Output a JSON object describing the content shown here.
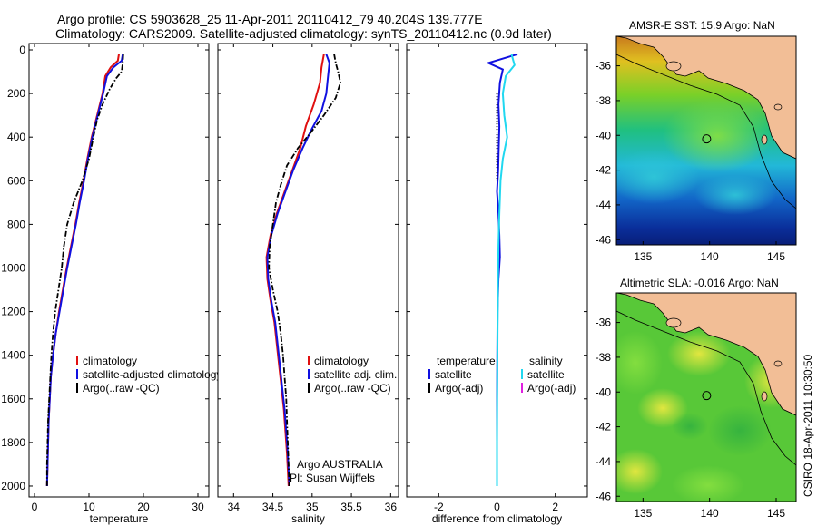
{
  "title": {
    "line1": "Argo profile: CS 5903628_25 11-Apr-2011 20110412_79 40.204S 139.777E",
    "line2": "Climatology: CARS2009. Satellite-adjusted climatology: synTS_20110412.nc (0.9d later)"
  },
  "side_label": "CSIRO 18-Apr-2011 10:30:50",
  "colors": {
    "climatology": "#e01010",
    "satellite": "#1010e0",
    "argo": "#000000",
    "cyan": "#20d8f0",
    "magenta": "#e020e0",
    "land": "#f2be96"
  },
  "chart_data": [
    {
      "type": "line",
      "xlabel": "temperature",
      "xlim": [
        -1,
        32
      ],
      "ylim": [
        0,
        2050
      ],
      "y_reversed": true,
      "xticks": [
        "0",
        "10",
        "20",
        "30"
      ],
      "yticks": [
        "0",
        "200",
        "400",
        "600",
        "800",
        "1000",
        "1200",
        "1400",
        "1600",
        "1800",
        "2000"
      ],
      "series": [
        {
          "name": "climatology",
          "style": "solid",
          "color": "#e01010",
          "points": [
            [
              15.5,
              20
            ],
            [
              15.3,
              50
            ],
            [
              14.0,
              80
            ],
            [
              13.0,
              120
            ],
            [
              12.5,
              200
            ],
            [
              11.5,
              300
            ],
            [
              10.5,
              400
            ],
            [
              9.7,
              500
            ],
            [
              9.0,
              600
            ],
            [
              8.2,
              700
            ],
            [
              7.5,
              800
            ],
            [
              6.7,
              900
            ],
            [
              5.9,
              1000
            ],
            [
              5.2,
              1100
            ],
            [
              4.5,
              1200
            ],
            [
              3.9,
              1300
            ],
            [
              3.4,
              1400
            ],
            [
              3.0,
              1500
            ],
            [
              2.8,
              1600
            ],
            [
              2.6,
              1700
            ],
            [
              2.5,
              1800
            ],
            [
              2.4,
              1900
            ],
            [
              2.3,
              2000
            ]
          ]
        },
        {
          "name": "satellite-adjusted climatology",
          "style": "solid",
          "color": "#1010e0",
          "points": [
            [
              16.2,
              20
            ],
            [
              16.0,
              50
            ],
            [
              14.5,
              80
            ],
            [
              13.3,
              120
            ],
            [
              12.6,
              200
            ],
            [
              11.6,
              300
            ],
            [
              10.6,
              400
            ],
            [
              9.8,
              500
            ],
            [
              9.1,
              600
            ],
            [
              8.3,
              700
            ],
            [
              7.6,
              800
            ],
            [
              6.8,
              900
            ],
            [
              6.0,
              1000
            ],
            [
              5.3,
              1100
            ],
            [
              4.6,
              1200
            ],
            [
              3.9,
              1300
            ],
            [
              3.4,
              1400
            ],
            [
              3.0,
              1500
            ],
            [
              2.8,
              1600
            ],
            [
              2.6,
              1700
            ],
            [
              2.5,
              1800
            ],
            [
              2.4,
              1900
            ],
            [
              2.3,
              2000
            ]
          ]
        },
        {
          "name": "Argo(..raw -QC)",
          "style": "dashdot",
          "color": "#000000",
          "points": [
            [
              16.3,
              20
            ],
            [
              16.2,
              60
            ],
            [
              16.0,
              100
            ],
            [
              15.0,
              130
            ],
            [
              13.8,
              180
            ],
            [
              12.5,
              250
            ],
            [
              11.5,
              320
            ],
            [
              10.8,
              400
            ],
            [
              10.0,
              500
            ],
            [
              8.8,
              600
            ],
            [
              7.2,
              700
            ],
            [
              6.0,
              800
            ],
            [
              5.4,
              900
            ],
            [
              5.0,
              1000
            ],
            [
              4.4,
              1100
            ],
            [
              3.8,
              1200
            ],
            [
              3.4,
              1300
            ],
            [
              3.1,
              1400
            ],
            [
              2.9,
              1500
            ],
            [
              2.7,
              1600
            ],
            [
              2.5,
              1700
            ],
            [
              2.4,
              1800
            ],
            [
              2.3,
              1900
            ],
            [
              2.3,
              2000
            ]
          ]
        }
      ],
      "legend": {
        "location": "center-right",
        "entries": [
          "climatology",
          "satellite-adjusted climatology",
          "Argo(..raw -QC)"
        ]
      }
    },
    {
      "type": "line",
      "xlabel": "salinity",
      "xlim": [
        33.8,
        36.1
      ],
      "ylim": [
        0,
        2050
      ],
      "y_reversed": true,
      "xticks": [
        "34",
        "34.5",
        "35",
        "35.5",
        "36"
      ],
      "series": [
        {
          "name": "climatology",
          "style": "solid",
          "color": "#e01010",
          "points": [
            [
              35.15,
              20
            ],
            [
              35.12,
              80
            ],
            [
              35.1,
              150
            ],
            [
              35.02,
              250
            ],
            [
              34.92,
              350
            ],
            [
              34.85,
              450
            ],
            [
              34.75,
              550
            ],
            [
              34.65,
              650
            ],
            [
              34.55,
              750
            ],
            [
              34.47,
              850
            ],
            [
              34.42,
              950
            ],
            [
              34.43,
              1050
            ],
            [
              34.47,
              1150
            ],
            [
              34.52,
              1250
            ],
            [
              34.55,
              1350
            ],
            [
              34.58,
              1450
            ],
            [
              34.61,
              1550
            ],
            [
              34.64,
              1650
            ],
            [
              34.66,
              1750
            ],
            [
              34.68,
              1850
            ],
            [
              34.7,
              2000
            ]
          ]
        },
        {
          "name": "satellite adj. clim.",
          "style": "solid",
          "color": "#1010e0",
          "points": [
            [
              35.18,
              20
            ],
            [
              35.22,
              60
            ],
            [
              35.2,
              130
            ],
            [
              35.18,
              200
            ],
            [
              35.12,
              280
            ],
            [
              35.0,
              360
            ],
            [
              34.88,
              450
            ],
            [
              34.76,
              550
            ],
            [
              34.66,
              650
            ],
            [
              34.56,
              750
            ],
            [
              34.48,
              850
            ],
            [
              34.43,
              950
            ],
            [
              34.44,
              1050
            ],
            [
              34.48,
              1150
            ],
            [
              34.53,
              1250
            ],
            [
              34.56,
              1350
            ],
            [
              34.59,
              1450
            ],
            [
              34.62,
              1550
            ],
            [
              34.65,
              1650
            ],
            [
              34.67,
              1750
            ],
            [
              34.69,
              1850
            ],
            [
              34.71,
              2000
            ]
          ]
        },
        {
          "name": "Argo(..raw -QC)",
          "style": "dashdot",
          "color": "#000000",
          "points": [
            [
              35.28,
              20
            ],
            [
              35.3,
              60
            ],
            [
              35.33,
              100
            ],
            [
              35.36,
              150
            ],
            [
              35.3,
              220
            ],
            [
              35.15,
              300
            ],
            [
              34.98,
              380
            ],
            [
              34.82,
              450
            ],
            [
              34.68,
              530
            ],
            [
              34.6,
              620
            ],
            [
              34.54,
              700
            ],
            [
              34.5,
              800
            ],
            [
              34.46,
              900
            ],
            [
              34.45,
              1000
            ],
            [
              34.5,
              1100
            ],
            [
              34.56,
              1200
            ],
            [
              34.6,
              1300
            ],
            [
              34.63,
              1400
            ],
            [
              34.65,
              1500
            ],
            [
              34.67,
              1600
            ],
            [
              34.68,
              1700
            ],
            [
              34.69,
              1800
            ],
            [
              34.7,
              1900
            ],
            [
              34.71,
              2000
            ]
          ]
        }
      ],
      "legend": {
        "location": "center-right",
        "entries": [
          "climatology",
          "satellite adj. clim.",
          "Argo(..raw -QC)"
        ]
      },
      "annotation": {
        "line1": "Argo AUSTRALIA",
        "line2": "PI: Susan Wijffels"
      }
    },
    {
      "type": "line",
      "xlabel": "difference from climatology",
      "xlim": [
        -3.1,
        3.1
      ],
      "ylim": [
        0,
        2050
      ],
      "y_reversed": true,
      "xticks": [
        "-2",
        "0",
        "2"
      ],
      "series": [
        {
          "name": "temperature satellite",
          "style": "solid",
          "color": "#1010e0",
          "points": [
            [
              0.7,
              20
            ],
            [
              -0.3,
              60
            ],
            [
              0.2,
              90
            ],
            [
              0.1,
              150
            ],
            [
              0.05,
              250
            ],
            [
              0.08,
              350
            ],
            [
              0.06,
              450
            ],
            [
              0.04,
              550
            ],
            [
              0.0,
              650
            ],
            [
              0.05,
              750
            ],
            [
              0.08,
              850
            ],
            [
              0.1,
              950
            ],
            [
              0.05,
              1050
            ],
            [
              0.02,
              1200
            ],
            [
              0.01,
              1400
            ],
            [
              0.0,
              1600
            ],
            [
              0.0,
              1800
            ],
            [
              0.0,
              2000
            ]
          ]
        },
        {
          "name": "salinity satellite",
          "style": "solid",
          "color": "#20d8f0",
          "points": [
            [
              0.5,
              20
            ],
            [
              0.6,
              70
            ],
            [
              0.3,
              120
            ],
            [
              0.2,
              200
            ],
            [
              0.25,
              300
            ],
            [
              0.35,
              400
            ],
            [
              0.2,
              500
            ],
            [
              0.12,
              600
            ],
            [
              0.08,
              750
            ],
            [
              0.05,
              900
            ],
            [
              0.03,
              1100
            ],
            [
              0.02,
              1300
            ],
            [
              0.01,
              1500
            ],
            [
              0.0,
              1800
            ],
            [
              0.0,
              2000
            ]
          ]
        },
        {
          "name": "temperature Argo(-adj)",
          "style": "dotted",
          "color": "#000000",
          "points": [
            [
              0.0,
              200
            ],
            [
              0.0,
              400
            ],
            [
              0.0,
              600
            ]
          ]
        }
      ],
      "legend": {
        "location": "center",
        "left_title": "temperature",
        "right_title": "salinity",
        "left_entries": [
          "satellite",
          "Argo(-adj)"
        ],
        "right_entries": [
          "satellite",
          "Argo(-adj)"
        ]
      }
    },
    {
      "type": "heatmap",
      "title": "AMSR-E SST: 15.9 Argo: NaN",
      "xlim": [
        133,
        146.5
      ],
      "ylim": [
        -46.3,
        -34.3
      ],
      "xticks": [
        "135",
        "140",
        "145"
      ],
      "yticks": [
        "-36",
        "-38",
        "-40",
        "-42",
        "-44",
        "-46"
      ],
      "marker": {
        "lon": 139.777,
        "lat": -40.204
      }
    },
    {
      "type": "heatmap",
      "title": "Altimetric SLA: -0.016 Argo: NaN",
      "xlim": [
        133,
        146.5
      ],
      "ylim": [
        -46.3,
        -34.3
      ],
      "xticks": [
        "135",
        "140",
        "145"
      ],
      "yticks": [
        "-36",
        "-38",
        "-40",
        "-42",
        "-44",
        "-46"
      ],
      "marker": {
        "lon": 139.777,
        "lat": -40.204
      }
    }
  ]
}
